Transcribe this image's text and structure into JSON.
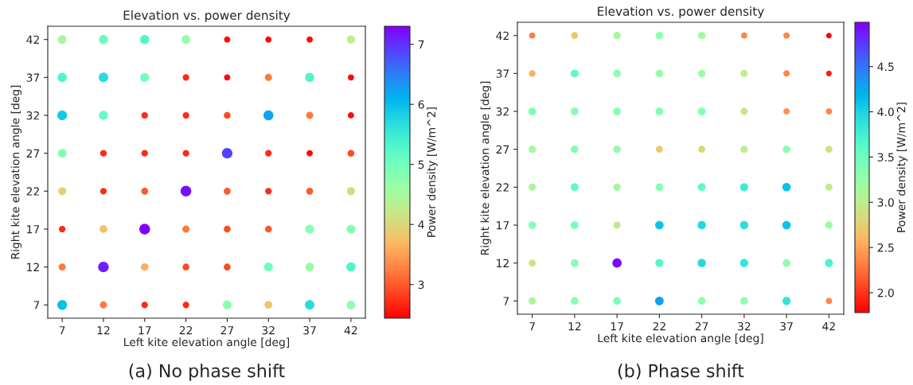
{
  "chart_data": [
    {
      "type": "scatter",
      "title": "Elevation vs. power density",
      "xlabel": "Left kite elevation angle [deg]",
      "ylabel": "Right kite elevation angle [deg]",
      "clabel": "Power density [W/m^2]",
      "annotations": [
        "(a) No phase shift"
      ],
      "xlim": [
        5.25,
        43.75
      ],
      "ylim": [
        5.25,
        43.75
      ],
      "xticks": [
        7,
        12,
        17,
        22,
        27,
        32,
        37,
        42
      ],
      "yticks": [
        7,
        12,
        17,
        22,
        27,
        32,
        37,
        42
      ],
      "clim": [
        2.44,
        7.3
      ],
      "cticks": [
        3,
        4,
        5,
        6,
        7
      ],
      "grid": false,
      "marker": "circle",
      "x": [
        7,
        12,
        17,
        22,
        27,
        32,
        37,
        42,
        7,
        12,
        17,
        22,
        27,
        32,
        37,
        42,
        7,
        12,
        17,
        22,
        27,
        32,
        37,
        42,
        7,
        12,
        17,
        22,
        27,
        32,
        37,
        42,
        7,
        12,
        17,
        22,
        27,
        32,
        37,
        42,
        7,
        12,
        17,
        22,
        27,
        32,
        37,
        42,
        7,
        12,
        17,
        22,
        27,
        32,
        37,
        42,
        7,
        12,
        17,
        22,
        27,
        32,
        37,
        42
      ],
      "series": [
        {
          "values": [
            42,
            42,
            42,
            42,
            42,
            42,
            42,
            42,
            37,
            37,
            37,
            37,
            37,
            37,
            37,
            37,
            32,
            32,
            32,
            32,
            32,
            32,
            32,
            32,
            27,
            27,
            27,
            27,
            27,
            27,
            27,
            27,
            22,
            22,
            22,
            22,
            22,
            22,
            22,
            22,
            17,
            17,
            17,
            17,
            17,
            17,
            17,
            17,
            12,
            12,
            12,
            12,
            12,
            12,
            12,
            12,
            7,
            7,
            7,
            7,
            7,
            7,
            7,
            7
          ],
          "sizes": [
            0.62,
            0.7,
            0.73,
            0.64,
            0.34,
            0.34,
            0.34,
            0.59,
            0.73,
            0.78,
            0.68,
            0.37,
            0.34,
            0.44,
            0.73,
            0.34,
            0.81,
            0.7,
            0.37,
            0.37,
            0.4,
            0.85,
            0.44,
            0.34,
            0.66,
            0.37,
            0.37,
            0.37,
            0.95,
            0.37,
            0.34,
            0.4,
            0.53,
            0.37,
            0.41,
            0.99,
            0.41,
            0.37,
            0.41,
            0.55,
            0.37,
            0.52,
            1,
            0.44,
            0.4,
            0.41,
            0.66,
            0.66,
            0.44,
            0.97,
            0.49,
            0.4,
            0.4,
            0.68,
            0.63,
            0.73,
            0.82,
            0.44,
            0.37,
            0.37,
            0.66,
            0.52,
            0.78,
            0.64
          ],
          "cvalues": [
            4.5,
            5.1,
            5.3,
            4.7,
            2.5,
            2.5,
            2.5,
            4.3,
            5.3,
            5.7,
            5.0,
            2.7,
            2.5,
            3.2,
            5.3,
            2.5,
            5.9,
            5.1,
            2.7,
            2.7,
            2.9,
            6.2,
            3.2,
            2.5,
            4.8,
            2.7,
            2.7,
            2.7,
            6.9,
            2.7,
            2.5,
            2.9,
            3.9,
            2.7,
            3.0,
            7.2,
            3.0,
            2.7,
            3.0,
            4.0,
            2.7,
            3.8,
            7.3,
            3.2,
            2.9,
            3.0,
            4.8,
            4.8,
            3.2,
            7.1,
            3.6,
            2.9,
            2.9,
            5.0,
            4.6,
            5.3,
            6.0,
            3.2,
            2.7,
            2.7,
            4.8,
            3.8,
            5.7,
            4.7
          ]
        }
      ]
    },
    {
      "type": "scatter",
      "title": "Elevation vs. power density",
      "xlabel": "Left kite elevation angle [deg]",
      "ylabel": "Right kite elevation angle [deg]",
      "clabel": "Power density [W/m^2]",
      "annotations": [
        "(b) Phase shift"
      ],
      "xlim": [
        5.25,
        43.75
      ],
      "ylim": [
        5.25,
        43.75
      ],
      "xticks": [
        7,
        12,
        17,
        22,
        27,
        32,
        37,
        42
      ],
      "yticks": [
        7,
        12,
        17,
        22,
        27,
        32,
        37,
        42
      ],
      "clim": [
        1.78,
        4.99
      ],
      "cticks": [
        {
          "value": 2,
          "label": "2.0"
        },
        2.5,
        {
          "value": 3,
          "label": "3.0"
        },
        3.5,
        {
          "value": 4,
          "label": "4.0"
        },
        4.5
      ],
      "grid": false,
      "marker": "circle",
      "x": [
        7,
        12,
        17,
        22,
        27,
        32,
        37,
        42,
        7,
        12,
        17,
        22,
        27,
        32,
        37,
        42,
        7,
        12,
        17,
        22,
        27,
        32,
        37,
        42,
        7,
        12,
        17,
        22,
        27,
        32,
        37,
        42,
        7,
        12,
        17,
        22,
        27,
        32,
        37,
        42,
        7,
        12,
        17,
        22,
        27,
        32,
        37,
        42,
        7,
        12,
        17,
        22,
        27,
        32,
        37,
        42,
        7,
        12,
        17,
        22,
        27,
        32,
        37,
        42
      ],
      "series": [
        {
          "values": [
            42,
            42,
            42,
            42,
            42,
            42,
            42,
            42,
            37,
            37,
            37,
            37,
            37,
            37,
            37,
            37,
            32,
            32,
            32,
            32,
            32,
            32,
            32,
            32,
            27,
            27,
            27,
            27,
            27,
            27,
            27,
            27,
            22,
            22,
            22,
            22,
            22,
            22,
            22,
            22,
            17,
            17,
            17,
            17,
            17,
            17,
            17,
            17,
            12,
            12,
            12,
            12,
            12,
            12,
            12,
            12,
            7,
            7,
            7,
            7,
            7,
            7,
            7,
            7
          ],
          "sizes": [
            0.46,
            0.55,
            0.64,
            0.67,
            0.64,
            0.47,
            0.47,
            0.36,
            0.52,
            0.73,
            0.67,
            0.66,
            0.65,
            0.61,
            0.47,
            0.38,
            0.69,
            0.68,
            0.68,
            0.68,
            0.68,
            0.6,
            0.48,
            0.47,
            0.64,
            0.68,
            0.66,
            0.55,
            0.57,
            0.61,
            0.67,
            0.59,
            0.63,
            0.73,
            0.64,
            0.68,
            0.73,
            0.77,
            0.83,
            0.61,
            0.68,
            0.7,
            0.61,
            0.83,
            0.8,
            0.79,
            0.83,
            0.66,
            0.59,
            0.68,
            1,
            0.74,
            0.8,
            0.78,
            0.67,
            0.75,
            0.63,
            0.68,
            0.69,
            0.87,
            0.67,
            0.67,
            0.78,
            0.47
          ],
          "cvalues": [
            2.3,
            2.7,
            3.15,
            3.3,
            3.15,
            2.35,
            2.35,
            1.8,
            2.55,
            3.6,
            3.3,
            3.25,
            3.2,
            3.0,
            2.35,
            1.9,
            3.4,
            3.35,
            3.35,
            3.35,
            3.35,
            2.95,
            2.4,
            2.35,
            3.15,
            3.35,
            3.25,
            2.7,
            2.8,
            3.0,
            3.3,
            2.9,
            3.1,
            3.6,
            3.15,
            3.35,
            3.6,
            3.8,
            4.1,
            3.0,
            3.35,
            3.45,
            3.0,
            4.1,
            3.95,
            3.9,
            4.1,
            3.25,
            2.9,
            3.35,
            4.95,
            3.65,
            3.95,
            3.85,
            3.3,
            3.7,
            3.1,
            3.35,
            3.4,
            4.3,
            3.3,
            3.3,
            3.85,
            2.35
          ]
        }
      ]
    }
  ]
}
